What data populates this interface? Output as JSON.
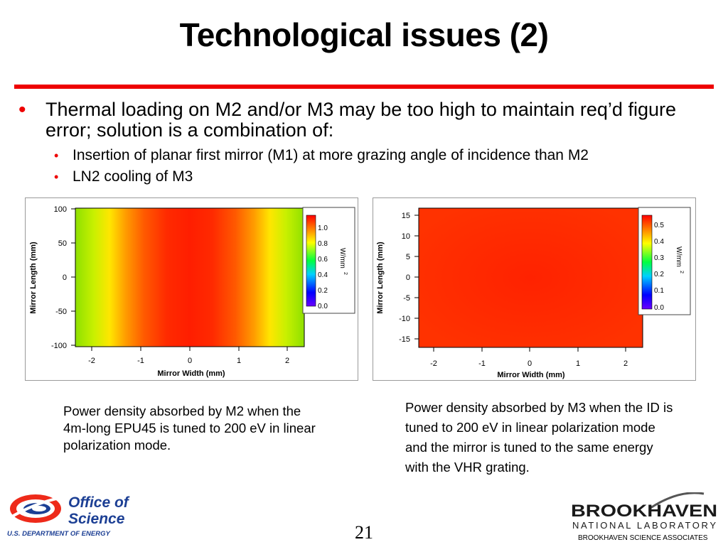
{
  "slide": {
    "title": "Technological issues (2)",
    "bullet_main": "Thermal loading on M2 and/or M3 may be too high to maintain req’d figure error; solution is a combination of:",
    "sub_bullets": [
      "Insertion of planar first mirror (M1) at more grazing angle of incidence than M2",
      "LN2 cooling of M3"
    ],
    "page_number": "21"
  },
  "figures": {
    "left": {
      "ylabel": "Mirror Length (mm)",
      "xlabel": "Mirror Width (mm)",
      "y_ticks": [
        "100",
        "50",
        "0",
        "-50",
        "-100"
      ],
      "x_ticks": [
        "-2",
        "-1",
        "0",
        "1",
        "2"
      ],
      "colorbar_ticks": [
        "1.0",
        "0.8",
        "0.6",
        "0.4",
        "0.2",
        "0.0"
      ],
      "colorbar_label": "W/mm",
      "colorbar_label_sup": "2",
      "caption": "Power density absorbed by M2 when the 4m-long EPU45 is tuned to 200 eV in linear polarization mode."
    },
    "right": {
      "ylabel": "Mirror Length (mm)",
      "xlabel": "Mirror Width (mm)",
      "y_ticks": [
        "15",
        "10",
        "5",
        "0",
        "-5",
        "-10",
        "-15"
      ],
      "x_ticks": [
        "-2",
        "-1",
        "0",
        "1",
        "2"
      ],
      "colorbar_ticks": [
        "0.5",
        "0.4",
        "0.3",
        "0.2",
        "0.1",
        "0.0"
      ],
      "colorbar_label": "W/mm",
      "colorbar_label_sup": "2",
      "caption": "Power density absorbed by M3 when the ID is tuned to 200 eV in linear polarization mode and the mirror is tuned to the same energy with the VHR grating."
    }
  },
  "logos": {
    "doe_line1": "Office of",
    "doe_line2": "Science",
    "doe_line3": "U.S. DEPARTMENT OF ENERGY",
    "bnl_line1": "BROOKHAVEN",
    "bnl_line2": "NATIONAL LABORATORY",
    "bnl_line3": "BROOKHAVEN SCIENCE ASSOCIATES"
  },
  "colors": {
    "accent_red": "#ee0000",
    "doe_blue": "#1c3f94",
    "heat_red": "#ff2a00"
  }
}
